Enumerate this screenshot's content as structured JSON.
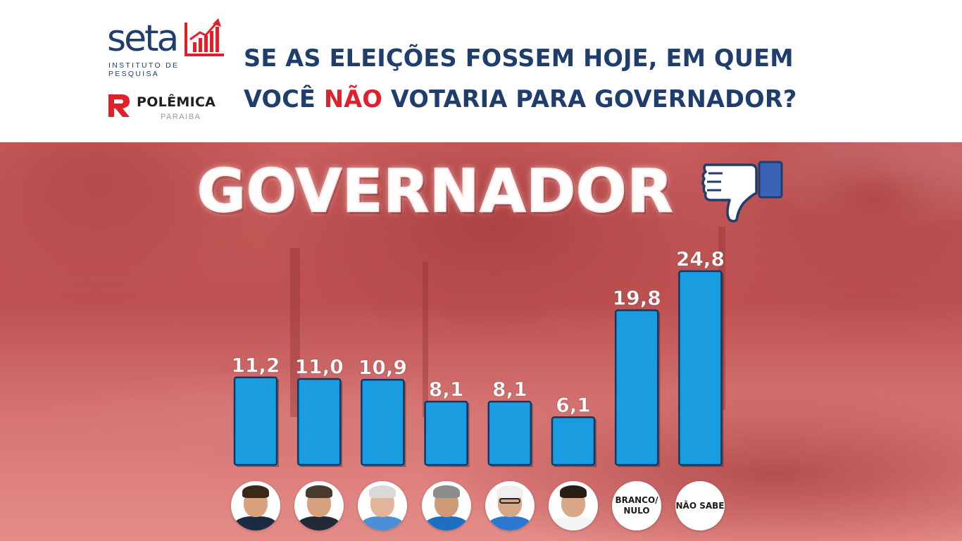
{
  "header": {
    "seta_logo_text": "seta",
    "seta_subtitle": "INSTITUTO DE PESQUISA",
    "polemica_logo_text": "POLÊMICA",
    "polemica_subtitle": "PARAIBA",
    "question_part1": "SE AS ELEIÇÕES FOSSEM HOJE, EM QUEM",
    "question_part2": "VOCÊ ",
    "question_highlight": "NÃO",
    "question_part3": " VOTARIA PARA GOVERNADOR?"
  },
  "colors": {
    "brand_navy": "#1f3e6e",
    "highlight_red": "#e0202b",
    "bar_blue": "#1a9ce0",
    "background_red": "#c45a59"
  },
  "icons": {
    "thumbs_down": "thumbs-down-icon"
  },
  "chart_data": {
    "type": "bar",
    "title": "GOVERNADOR",
    "categories": [
      "",
      "",
      "",
      "",
      "",
      "",
      "BRANCO/ NULO",
      "NÃO SABE"
    ],
    "values": [
      11.2,
      11.0,
      10.9,
      8.1,
      8.1,
      6.1,
      19.8,
      24.8
    ],
    "value_labels": [
      "11,2",
      "11,0",
      "10,9",
      "8,1",
      "8,1",
      "6,1",
      "19,8",
      "24,8"
    ],
    "xlabel": "",
    "ylabel": "",
    "ylim": [
      0,
      25
    ],
    "grid": false,
    "legend": "none"
  },
  "candidates": [
    {
      "kind": "photo",
      "skin": "#d9a27c",
      "hair": "#3a2818",
      "shirt": "#1d2a44"
    },
    {
      "kind": "photo",
      "skin": "#d7a07f",
      "hair": "#4a3a2e",
      "shirt": "#222a38"
    },
    {
      "kind": "photo",
      "skin": "#e2b59a",
      "hair": "#d9d9d9",
      "shirt": "#4d8fd6"
    },
    {
      "kind": "photo",
      "skin": "#cf9a78",
      "hair": "#8c8c8c",
      "shirt": "#1e6fc4"
    },
    {
      "kind": "photo",
      "skin": "#d6a688",
      "hair": "#efefef",
      "shirt": "#2a78d0"
    },
    {
      "kind": "photo",
      "skin": "#d8a786",
      "hair": "#2a1d14",
      "shirt": "#f4f4f4"
    },
    {
      "kind": "text",
      "label": "BRANCO/ NULO"
    },
    {
      "kind": "text",
      "label": "NÃO SABE"
    }
  ]
}
